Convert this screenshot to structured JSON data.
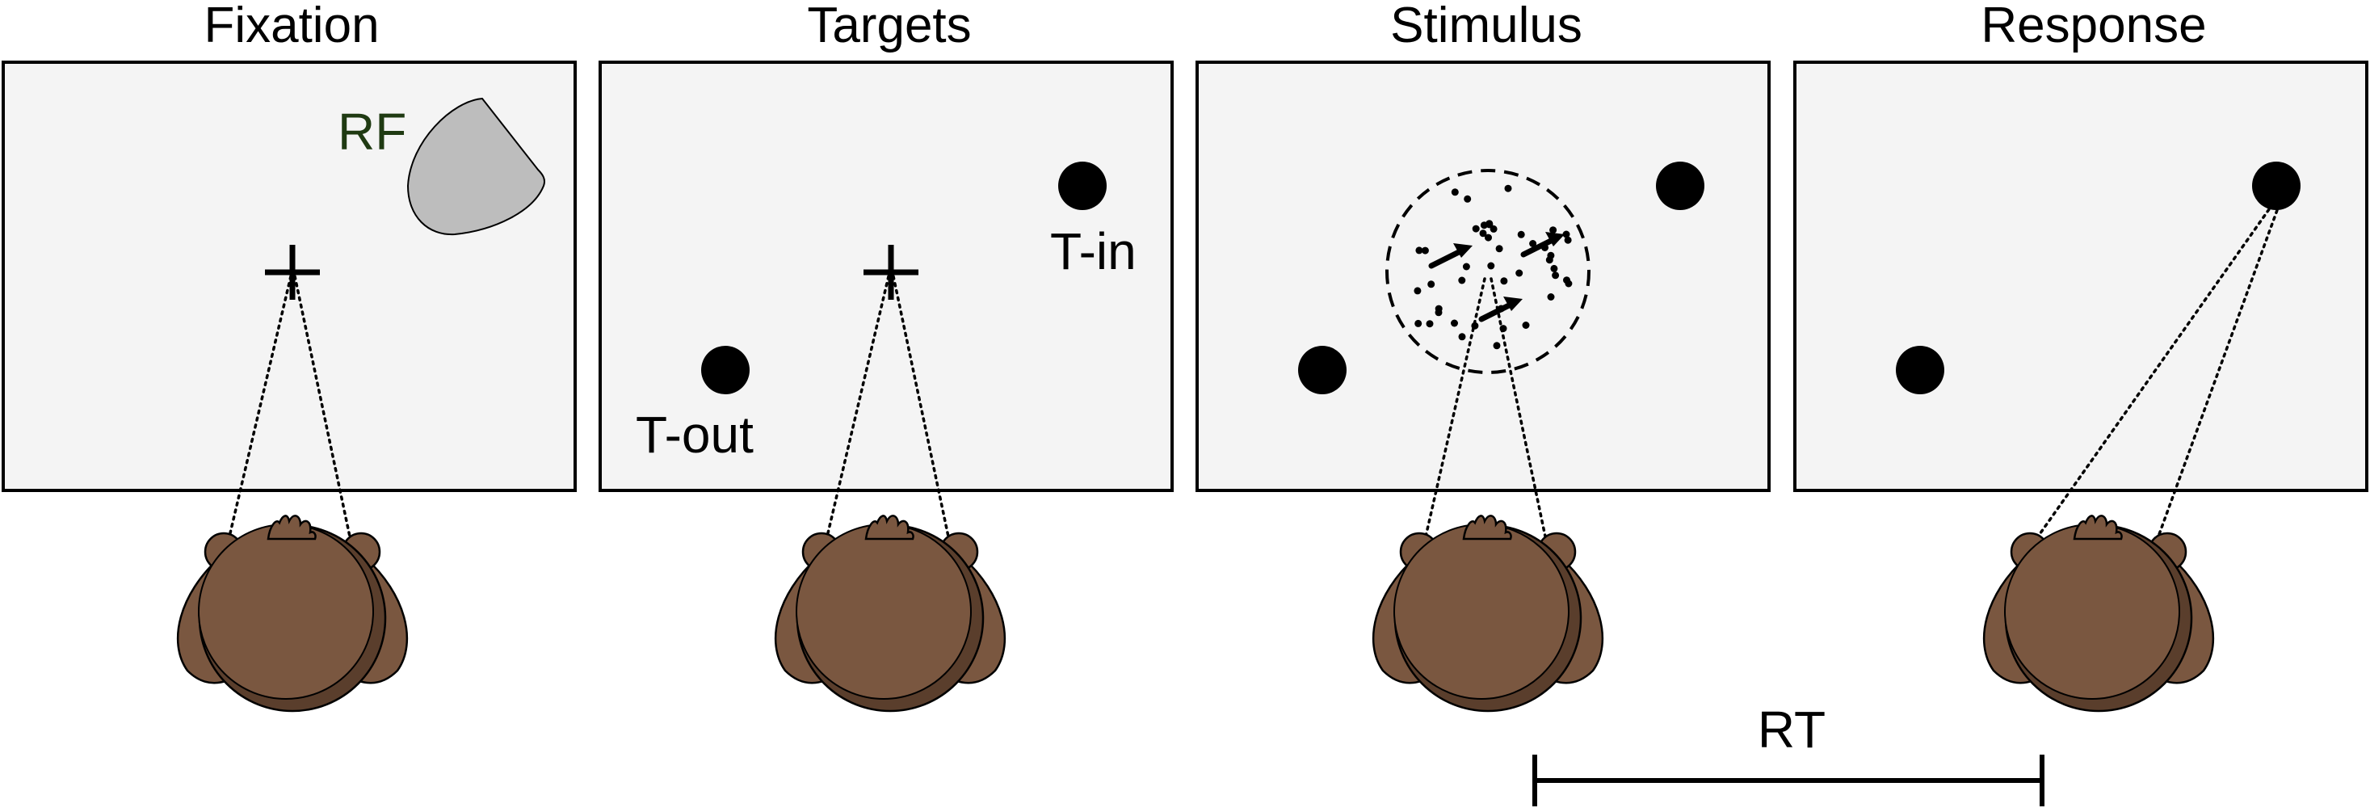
{
  "panels": [
    {
      "title": "Fixation"
    },
    {
      "title": "Targets",
      "labels": {
        "t_in": "T-in",
        "t_out": "T-out"
      }
    },
    {
      "title": "Stimulus"
    },
    {
      "title": "Response"
    }
  ],
  "rf_label": "RF",
  "rt_label": "RT",
  "colors": {
    "screen_fill": "#f4f4f4",
    "rf_fill": "#bdbdbd",
    "rf_label": "#1f3a12",
    "monkey_fur": "#7a5740",
    "monkey_shadow": "#5a3e2c",
    "outline": "#000000"
  },
  "icons": [
    "fixation-cross-icon",
    "target-dot-icon",
    "monkey-head-icon",
    "motion-arrow-icon"
  ]
}
